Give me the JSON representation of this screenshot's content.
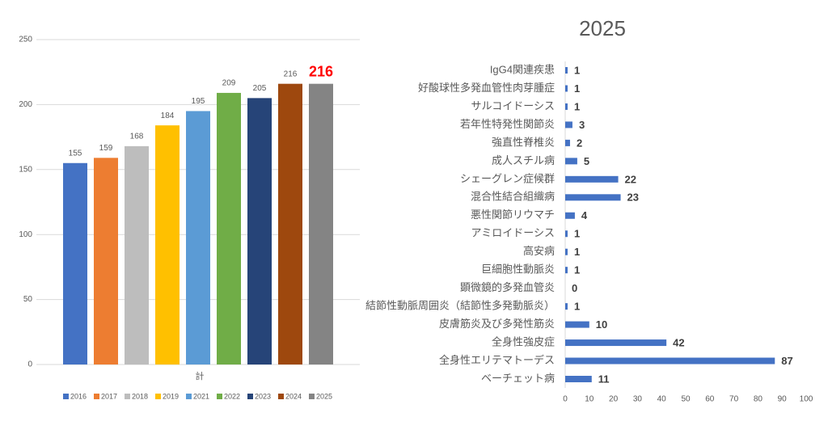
{
  "chart_data": [
    {
      "type": "bar",
      "categories": [
        "計"
      ],
      "ylim": [
        0,
        250
      ],
      "yticks": [
        0,
        50,
        100,
        150,
        200,
        250
      ],
      "grid": true,
      "legend": "bottom",
      "series": [
        {
          "name": "2016",
          "color": "#4472c4",
          "values": [
            155
          ]
        },
        {
          "name": "2017",
          "color": "#ed7d31",
          "values": [
            159
          ]
        },
        {
          "name": "2018",
          "color": "#bdbdbd",
          "values": [
            168
          ]
        },
        {
          "name": "2019",
          "color": "#ffc000",
          "values": [
            184
          ]
        },
        {
          "name": "2021",
          "color": "#5b9bd5",
          "values": [
            195
          ]
        },
        {
          "name": "2022",
          "color": "#70ad47",
          "values": [
            209
          ]
        },
        {
          "name": "2023",
          "color": "#264478",
          "values": [
            205
          ]
        },
        {
          "name": "2024",
          "color": "#9e480e",
          "values": [
            216
          ]
        },
        {
          "name": "2025",
          "color": "#848484",
          "values": [
            216
          ],
          "label_color": "#ff0000"
        }
      ]
    },
    {
      "type": "hbar",
      "title": "2025",
      "color": "#4472c4",
      "xlim": [
        0,
        100
      ],
      "xticks": [
        0,
        10,
        20,
        30,
        40,
        50,
        60,
        70,
        80,
        90,
        100
      ],
      "grid": false,
      "categories": [
        "IgG4関連疾患",
        "好酸球性多発血管性肉芽腫症",
        "サルコイドーシス",
        "若年性特発性関節炎",
        "強直性脊椎炎",
        "成人スチル病",
        "シェーグレン症候群",
        "混合性結合組織病",
        "悪性関節リウマチ",
        "アミロイドーシス",
        "高安病",
        "巨細胞性動脈炎",
        "顕微鏡的多発血管炎",
        "結節性動脈周囲炎（結節性多発動脈炎）",
        "皮膚筋炎及び多発性筋炎",
        "全身性強皮症",
        "全身性エリテマトーデス",
        "ベーチェット病"
      ],
      "values": [
        1,
        1,
        1,
        3,
        2,
        5,
        22,
        23,
        4,
        1,
        1,
        1,
        0,
        1,
        10,
        42,
        87,
        11
      ]
    }
  ]
}
